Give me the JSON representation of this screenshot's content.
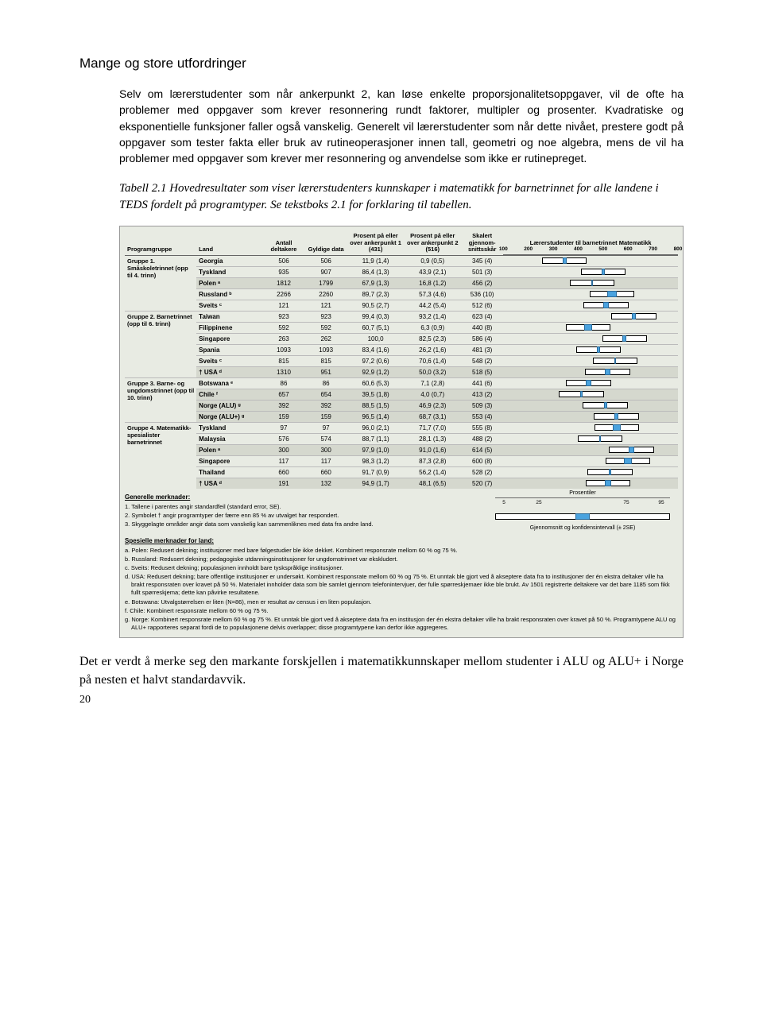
{
  "page_number": "20",
  "title": "Mange og store utfordringer",
  "intro": "Selv om lærerstudenter som når ankerpunkt 2, kan løse enkelte proporsjonalitetsoppgaver, vil de ofte ha problemer med oppgaver som krever resonnering rundt faktorer, multipler og prosenter. Kvadratiske og eksponentielle funksjoner faller også vanskelig. Generelt vil lærerstudenter som når dette nivået, prestere godt på oppgaver som tester fakta eller bruk av rutineoperasjoner innen tall, geometri og noe algebra, mens de vil ha problemer med oppgaver som krever mer resonnering og anvendelse som ikke er rutinepreget.",
  "caption": "Tabell 2.1 Hovedresultater som viser lærerstudenters kunnskaper i matematikk for barnetrinnet for alle landene i TEDS fordelt på programtyper. Se tekstboks 2.1 for forklaring til tabellen.",
  "closing": "Det er verdt å merke seg den markante forskjellen i matematikkunnskaper mellom studenter i ALU og ALU+ i Norge på nesten et halvt standardavvik.",
  "headers": {
    "programgruppe": "Programgruppe",
    "land": "Land",
    "antall": "Antall deltakere",
    "gyldige": "Gyldige data",
    "p431": "Prosent på eller over ankerpunkt 1 (431)",
    "p516": "Prosent på eller over ankerpunkt 2 (516)",
    "skar": "Skalert gjennom-snittsskår",
    "chart": "Lærerstudenter til barnetrinnet Matematikk"
  },
  "chart": {
    "min": 100,
    "max": 800,
    "ticks": [
      100,
      200,
      300,
      400,
      500,
      600,
      700,
      800
    ],
    "whisker_color": "#ffffff",
    "ci_color": "#4aa3df",
    "border_color": "#000000",
    "box_half_width": 90
  },
  "legend": {
    "label": "Prosentiler",
    "ticks": [
      5,
      25,
      75,
      95
    ],
    "meancap": "Gjennomsnitt og konfidensintervall (± 2SE)"
  },
  "groups": [
    {
      "name": "Gruppe 1. Småskoletrinnet (opp til 4. trinn)",
      "rows": [
        {
          "land": "Georgia",
          "n": "506",
          "gd": "506",
          "p1": "11,9 (1,4)",
          "p2": "0,9 (0,5)",
          "sk": "345 (4)",
          "mean": 345,
          "se": 4
        },
        {
          "land": "Tyskland",
          "n": "935",
          "gd": "907",
          "p1": "86,4 (1,3)",
          "p2": "43,9 (2,1)",
          "sk": "501 (3)",
          "mean": 501,
          "se": 3
        },
        {
          "land": "Polen ᵃ",
          "n": "1812",
          "gd": "1799",
          "p1": "67,9 (1,3)",
          "p2": "16,8 (1,2)",
          "sk": "456 (2)",
          "mean": 456,
          "se": 2,
          "shade": true
        },
        {
          "land": "Russland ᵇ",
          "n": "2266",
          "gd": "2260",
          "p1": "89,7 (2,3)",
          "p2": "57,3 (4,6)",
          "sk": "536 (10)",
          "mean": 536,
          "se": 10
        },
        {
          "land": "Sveits ᶜ",
          "n": "121",
          "gd": "121",
          "p1": "90,5 (2,7)",
          "p2": "44,2 (5,4)",
          "sk": "512 (6)",
          "mean": 512,
          "se": 6
        }
      ]
    },
    {
      "name": "Gruppe 2. Barnetrinnet (opp til 6. trinn)",
      "rows": [
        {
          "land": "Taiwan",
          "n": "923",
          "gd": "923",
          "p1": "99,4 (0,3)",
          "p2": "93,2 (1,4)",
          "sk": "623 (4)",
          "mean": 623,
          "se": 4
        },
        {
          "land": "Filippinene",
          "n": "592",
          "gd": "592",
          "p1": "60,7 (5,1)",
          "p2": "6,3 (0,9)",
          "sk": "440 (8)",
          "mean": 440,
          "se": 8
        },
        {
          "land": "Singapore",
          "n": "263",
          "gd": "262",
          "p1": "100,0",
          "p2": "82,5 (2,3)",
          "sk": "586 (4)",
          "mean": 586,
          "se": 4
        },
        {
          "land": "Spania",
          "n": "1093",
          "gd": "1093",
          "p1": "83,4 (1,6)",
          "p2": "26,2 (1,6)",
          "sk": "481 (3)",
          "mean": 481,
          "se": 3
        },
        {
          "land": "Sveits ᶜ",
          "n": "815",
          "gd": "815",
          "p1": "97,2 (0,6)",
          "p2": "70,6 (1,4)",
          "sk": "548 (2)",
          "mean": 548,
          "se": 2
        },
        {
          "land": "† USA ᵈ",
          "n": "1310",
          "gd": "951",
          "p1": "92,9 (1,2)",
          "p2": "50,0 (3,2)",
          "sk": "518 (5)",
          "mean": 518,
          "se": 5,
          "shade": true
        }
      ]
    },
    {
      "name": "Gruppe 3. Barne- og ungdomstrinnet (opp til 10. trinn)",
      "rows": [
        {
          "land": "Botswana ᵉ",
          "n": "86",
          "gd": "86",
          "p1": "60,6 (5,3)",
          "p2": "7,1 (2,8)",
          "sk": "441 (6)",
          "mean": 441,
          "se": 6
        },
        {
          "land": "Chile ᶠ",
          "n": "657",
          "gd": "654",
          "p1": "39,5 (1,8)",
          "p2": "4,0 (0,7)",
          "sk": "413 (2)",
          "mean": 413,
          "se": 2,
          "shade": true
        },
        {
          "land": "Norge (ALU) ᵍ",
          "n": "392",
          "gd": "392",
          "p1": "88,5 (1,5)",
          "p2": "46,9 (2,3)",
          "sk": "509 (3)",
          "mean": 509,
          "se": 3,
          "shade": true
        },
        {
          "land": "Norge (ALU+) ᵍ",
          "n": "159",
          "gd": "159",
          "p1": "96,5 (1,4)",
          "p2": "68,7 (3,1)",
          "sk": "553 (4)",
          "mean": 553,
          "se": 4,
          "shade": true
        }
      ]
    },
    {
      "name": "Gruppe 4. Matematikk-spesialister barnetrinnet",
      "rows": [
        {
          "land": "Tyskland",
          "n": "97",
          "gd": "97",
          "p1": "96,0 (2,1)",
          "p2": "71,7 (7,0)",
          "sk": "555 (8)",
          "mean": 555,
          "se": 8
        },
        {
          "land": "Malaysia",
          "n": "576",
          "gd": "574",
          "p1": "88,7 (1,1)",
          "p2": "28,1 (1,3)",
          "sk": "488 (2)",
          "mean": 488,
          "se": 2
        },
        {
          "land": "Polen ᵃ",
          "n": "300",
          "gd": "300",
          "p1": "97,9 (1,0)",
          "p2": "91,0 (1,6)",
          "sk": "614 (5)",
          "mean": 614,
          "se": 5,
          "shade": true
        },
        {
          "land": "Singapore",
          "n": "117",
          "gd": "117",
          "p1": "98,3 (1,2)",
          "p2": "87,3 (2,8)",
          "sk": "600 (8)",
          "mean": 600,
          "se": 8
        },
        {
          "land": "Thailand",
          "n": "660",
          "gd": "660",
          "p1": "91,7 (0,9)",
          "p2": "56,2 (1,4)",
          "sk": "528 (2)",
          "mean": 528,
          "se": 2
        },
        {
          "land": "† USA ᵈ",
          "n": "191",
          "gd": "132",
          "p1": "94,9 (1,7)",
          "p2": "48,1 (6,5)",
          "sk": "520 (7)",
          "mean": 520,
          "se": 7,
          "shade": true
        }
      ]
    }
  ],
  "general_notes_hdr": "Generelle merknader:",
  "general_notes": [
    "1. Tallene i parentes angir standardfeil (standard error, SE).",
    "2. Symbolet † angir programtyper der færre enn 85 % av utvalget har respondert.",
    "3. Skyggelagte områder angir data som vanskelig kan sammenliknes med data fra andre land."
  ],
  "special_notes_hdr": "Spesielle merknader for land:",
  "special_notes": [
    "a. Polen: Redusert dekning; institusjoner med bare følgestudier ble ikke dekket. Kombinert responsrate mellom 60 % og 75 %.",
    "b. Russland: Redusert dekning; pedagogiske utdanningsinstitusjoner for ungdomstrinnet var ekskludert.",
    "c. Sveits: Redusert dekning; populasjonen innholdt bare tyskspråklige institusjoner.",
    "d. USA: Redusert dekning; bare offentlige institusjoner er undersøkt. Kombinert responsrate mellom 60 % og 75 %. Et unntak ble gjort ved å akseptere data fra to institusjoner der én ekstra deltaker ville ha brakt responsraten over kravet på 50 %. Materialet innholder data som ble samlet gjennom telefonintervjuer, der fulle spørreskjemaer ikke ble brukt. Av 1501 registrerte deltakere var det bare 1185 som fikk fullt spørreskjema; dette kan påvirke resultatene.",
    "e. Botswana: Utvalgstørrelsen er liten (N=86), men er resultat av census i en liten populasjon.",
    "f. Chile: Kombinert responsrate mellom 60 % og 75 %.",
    "g. Norge: Kombinert responsrate mellom 60 % og 75 %. Et unntak ble gjort ved å akseptere data fra en institusjon der én ekstra deltaker ville ha brakt responsraten over kravet på 50 %. Programtypene ALU og ALU+ rapporteres separat fordi de to populasjonene delvis overlapper; disse programtypene kan derfor ikke aggregeres."
  ]
}
